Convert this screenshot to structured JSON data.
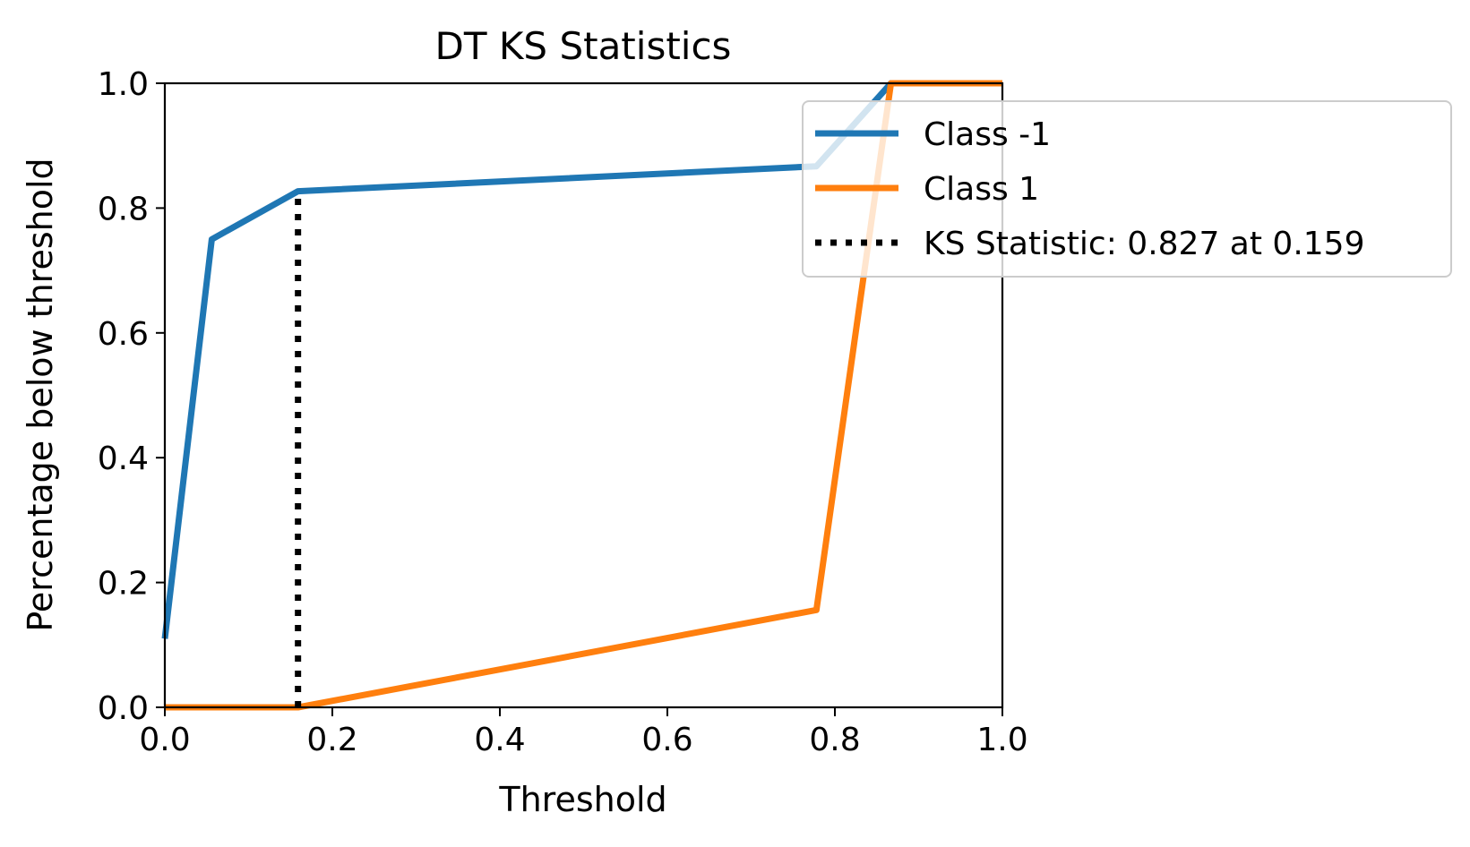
{
  "chart_data": {
    "type": "line",
    "title": "DT KS Statistics",
    "xlabel": "Threshold",
    "ylabel": "Percentage below threshold",
    "xlim": [
      0.0,
      1.0
    ],
    "ylim": [
      0.0,
      1.0
    ],
    "xticks": [
      "0.0",
      "0.2",
      "0.4",
      "0.6",
      "0.8",
      "1.0"
    ],
    "yticks": [
      "0.0",
      "0.2",
      "0.4",
      "0.6",
      "0.8",
      "1.0"
    ],
    "grid": false,
    "legend_position": "top-right",
    "series": [
      {
        "name": "Class -1",
        "color": "#1f77b4",
        "style": "solid",
        "x": [
          0.0,
          0.056,
          0.159,
          0.778,
          0.867,
          1.0
        ],
        "y": [
          0.11,
          0.75,
          0.827,
          0.867,
          1.0,
          1.0
        ]
      },
      {
        "name": "Class 1",
        "color": "#ff7f0e",
        "style": "solid",
        "x": [
          0.0,
          0.159,
          0.778,
          0.867,
          1.0
        ],
        "y": [
          0.0,
          0.0,
          0.156,
          1.0,
          1.0
        ]
      }
    ],
    "ks_statistic": {
      "label": "KS Statistic: 0.827 at 0.159",
      "color": "#000000",
      "style": "dotted",
      "x": 0.159,
      "y_from": 0.0,
      "y_to": 0.827
    }
  }
}
